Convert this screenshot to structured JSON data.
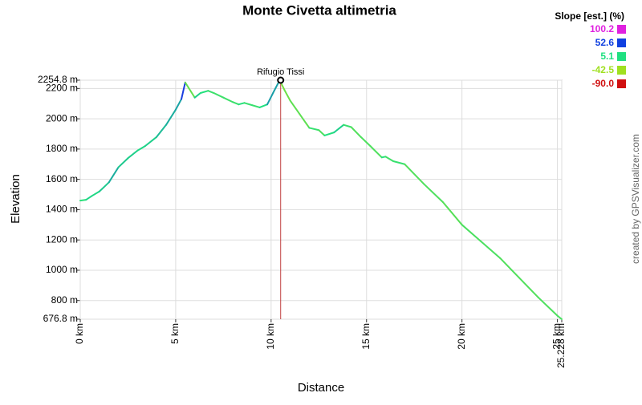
{
  "chart_data": {
    "type": "line",
    "title": "Monte Civetta altimetria",
    "x_label": "Distance",
    "y_label": "Elevation",
    "credit": "created by GPSVisualizer.com",
    "xlim": [
      0,
      25.228
    ],
    "ylim": [
      676.8,
      2254.8
    ],
    "xticks": [
      {
        "value": 0,
        "label": "0 km"
      },
      {
        "value": 5,
        "label": "5 km"
      },
      {
        "value": 10,
        "label": "10 km"
      },
      {
        "value": 15,
        "label": "15 km"
      },
      {
        "value": 20,
        "label": "20 km"
      },
      {
        "value": 25,
        "label": "25 km"
      },
      {
        "value": 25.228,
        "label": "25.228 km"
      }
    ],
    "yticks": [
      {
        "value": 676.8,
        "label": "676.8 m"
      },
      {
        "value": 800,
        "label": "800 m"
      },
      {
        "value": 1000,
        "label": "1000 m"
      },
      {
        "value": 1200,
        "label": "1200 m"
      },
      {
        "value": 1400,
        "label": "1400 m"
      },
      {
        "value": 1600,
        "label": "1600 m"
      },
      {
        "value": 1800,
        "label": "1800 m"
      },
      {
        "value": 2000,
        "label": "2000 m"
      },
      {
        "value": 2200,
        "label": "2200 m"
      },
      {
        "value": 2254.8,
        "label": "2254.8 m"
      }
    ],
    "grid": true,
    "x": [
      0,
      0.3,
      0.6,
      1,
      1.5,
      2,
      2.5,
      3,
      3.4,
      4,
      4.5,
      5,
      5.3,
      5.5,
      5.8,
      6,
      6.3,
      6.7,
      7,
      7.5,
      8,
      8.3,
      8.6,
      9,
      9.4,
      9.8,
      10.1,
      10.45,
      10.7,
      11,
      11.5,
      12,
      12.5,
      12.8,
      13.3,
      13.8,
      14.2,
      14.7,
      15.2,
      15.8,
      16,
      16.4,
      17,
      18,
      19,
      20,
      21,
      22,
      23,
      24,
      25,
      25.228
    ],
    "series": [
      {
        "name": "Elevation",
        "values": [
          1460,
          1465,
          1490,
          1520,
          1580,
          1680,
          1740,
          1790,
          1820,
          1880,
          1960,
          2060,
          2130,
          2240,
          2180,
          2140,
          2170,
          2185,
          2170,
          2140,
          2110,
          2095,
          2105,
          2090,
          2075,
          2095,
          2170,
          2254.8,
          2190,
          2120,
          2030,
          1940,
          1925,
          1890,
          1910,
          1960,
          1945,
          1880,
          1820,
          1745,
          1750,
          1720,
          1700,
          1570,
          1450,
          1300,
          1190,
          1080,
          950,
          820,
          700,
          676.8
        ]
      }
    ],
    "slope_legend": {
      "title": "Slope [est.] (%)",
      "values": [
        100.2,
        52.6,
        5.1,
        -42.5,
        -90
      ],
      "value_labels": [
        "100.2",
        "52.6",
        "5.1",
        "-42.5",
        "-90.0"
      ],
      "colors": [
        "#e020e0",
        "#1040e0",
        "#20e080",
        "#a0e020",
        "#d01010"
      ]
    },
    "waypoint": {
      "label": "Rifugio Tissi",
      "x": 10.5,
      "y": 2254.8,
      "color": "#c04040"
    }
  }
}
